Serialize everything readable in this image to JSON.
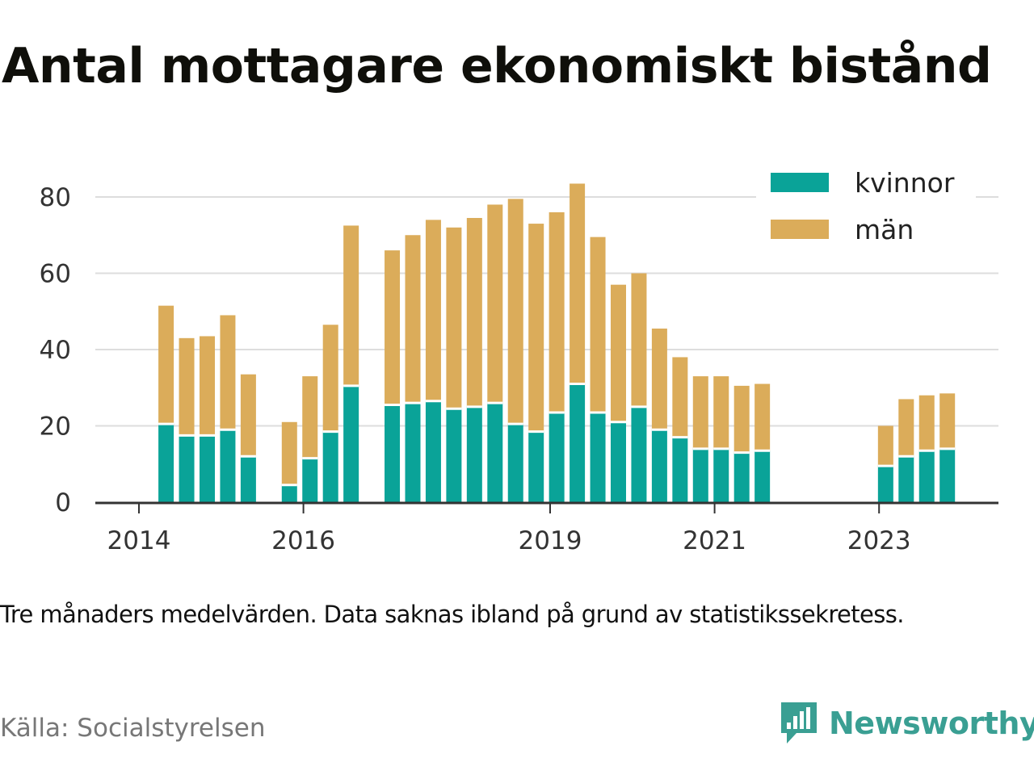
{
  "header": {
    "title": "Antal mottagare ekonomiskt bistånd"
  },
  "footer": {
    "note": "Tre månaders medelvärden. Data saknas ibland på grund av statistikssekretess.",
    "source": "Källa: Socialstyrelsen",
    "brand": "Newsworthy"
  },
  "colors": {
    "kvinnor": "#0aa398",
    "man": "#dbac5a",
    "grid": "#dddddd",
    "axis": "#333333",
    "brand": "#3a9f93"
  },
  "chart_data": {
    "type": "bar",
    "stacked": true,
    "title": "Antal mottagare ekonomiskt bistånd",
    "xlabel": "",
    "ylabel": "",
    "ylim": [
      0,
      90
    ],
    "yticks": [
      0,
      20,
      40,
      60,
      80
    ],
    "xticks": [
      {
        "label": "2014",
        "x": 2014.0
      },
      {
        "label": "2016",
        "x": 2016.0
      },
      {
        "label": "2019",
        "x": 2019.0
      },
      {
        "label": "2021",
        "x": 2021.0
      },
      {
        "label": "2023",
        "x": 2023.0
      }
    ],
    "grid": true,
    "legend_position": "top-right",
    "x": [
      2014.33,
      2014.58,
      2014.83,
      2015.08,
      2015.33,
      2015.83,
      2016.08,
      2016.33,
      2016.58,
      2017.08,
      2017.33,
      2017.58,
      2017.83,
      2018.08,
      2018.33,
      2018.58,
      2018.83,
      2019.08,
      2019.33,
      2019.58,
      2019.83,
      2020.08,
      2020.33,
      2020.58,
      2020.83,
      2021.08,
      2021.33,
      2021.58,
      2023.08,
      2023.33,
      2023.58,
      2023.83
    ],
    "series": [
      {
        "name": "kvinnor",
        "values": [
          20.5,
          17.5,
          17.5,
          19,
          12,
          4.5,
          11.5,
          18.5,
          30.5,
          25.5,
          26,
          26.5,
          24.5,
          25,
          26,
          20.5,
          18.5,
          23.5,
          31,
          23.5,
          21,
          25,
          19,
          17,
          14,
          14,
          13,
          13.5,
          9.5,
          12,
          13.5,
          14
        ]
      },
      {
        "name": "män",
        "values": [
          31,
          25.5,
          26,
          30,
          21.5,
          16.5,
          21.5,
          28,
          42,
          40.5,
          44,
          47.5,
          47.5,
          49.5,
          52,
          59,
          54.5,
          52.5,
          52.5,
          46,
          36,
          35,
          26.5,
          21,
          19,
          19,
          17.5,
          17.5,
          10.5,
          15,
          14.5,
          14.5
        ]
      }
    ]
  }
}
